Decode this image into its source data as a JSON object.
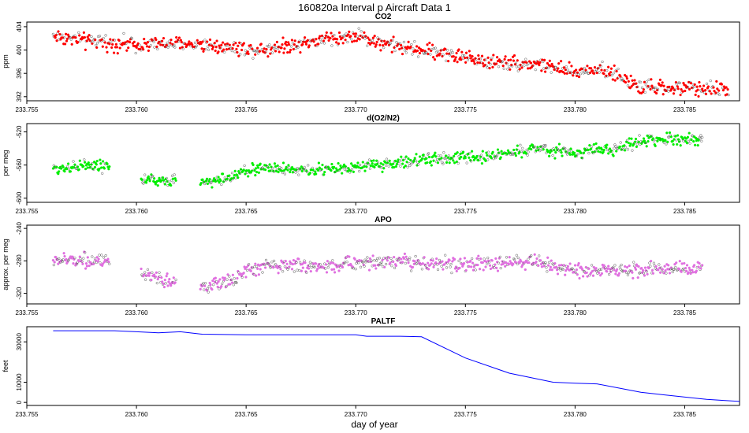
{
  "figure": {
    "title": "160820a   Interval p Aircraft Data 1",
    "xlabel": "day of year"
  },
  "chart_data": [
    {
      "type": "scatter",
      "title": "CO2",
      "ylabel": "ppm",
      "color": "#ff0000",
      "xlim": [
        233.755,
        233.7875
      ],
      "ylim": [
        391.3,
        404.8
      ],
      "yticks": [
        404,
        400,
        396,
        392
      ],
      "xticks": [
        "233.755",
        "233.760",
        "233.765",
        "233.770",
        "233.775",
        "233.780",
        "233.785"
      ],
      "trend": [
        [
          233.7562,
          402.5
        ],
        [
          233.7578,
          401.5
        ],
        [
          233.76,
          401.0
        ],
        [
          233.763,
          401.0
        ],
        [
          233.7655,
          400.0
        ],
        [
          233.768,
          401.5
        ],
        [
          233.77,
          402.5
        ],
        [
          233.772,
          400.5
        ],
        [
          233.774,
          399.5
        ],
        [
          233.776,
          398.0
        ],
        [
          233.7785,
          397.5
        ],
        [
          233.78,
          396.0
        ],
        [
          233.781,
          397.0
        ],
        [
          233.782,
          395.5
        ],
        [
          233.783,
          393.5
        ],
        [
          233.785,
          393.5
        ],
        [
          233.787,
          393.2
        ]
      ],
      "noise": 0.9
    },
    {
      "type": "scatter",
      "title": "d(O2/N2)",
      "ylabel": "per meg",
      "color": "#00ee00",
      "xlim": [
        233.755,
        233.7875
      ],
      "ylim": [
        -605,
        -510
      ],
      "yticks": [
        -520,
        -560,
        -600
      ],
      "xticks": [
        "233.755",
        "233.760",
        "233.765",
        "233.770",
        "233.775",
        "233.780",
        "233.785"
      ],
      "trend": [
        [
          233.7562,
          -565
        ],
        [
          233.7575,
          -560
        ],
        [
          233.7587,
          -562
        ],
        [
          233.7603,
          -577
        ],
        [
          233.7617,
          -580
        ],
        [
          233.763,
          -581
        ],
        [
          233.764,
          -577
        ],
        [
          233.765,
          -567
        ],
        [
          233.766,
          -563
        ],
        [
          233.768,
          -567
        ],
        [
          233.77,
          -563
        ],
        [
          233.772,
          -557
        ],
        [
          233.774,
          -552
        ],
        [
          233.776,
          -550
        ],
        [
          233.778,
          -540
        ],
        [
          233.78,
          -545
        ],
        [
          233.782,
          -540
        ],
        [
          233.783,
          -530
        ],
        [
          233.7858,
          -528
        ]
      ],
      "gaps": [
        [
          233.7588,
          233.7602
        ],
        [
          233.7618,
          233.7629
        ]
      ],
      "noise": 5
    },
    {
      "type": "scatter",
      "title": "APO",
      "ylabel": "approx. per meg",
      "color": "#e070e0",
      "xlim": [
        233.755,
        233.7875
      ],
      "ylim": [
        -333,
        -236
      ],
      "yticks": [
        -240,
        -280,
        -320
      ],
      "xticks": [
        "233.755",
        "233.760",
        "233.765",
        "233.770",
        "233.775",
        "233.780",
        "233.785"
      ],
      "trend": [
        [
          233.7562,
          -280
        ],
        [
          233.7575,
          -278
        ],
        [
          233.7587,
          -282
        ],
        [
          233.7603,
          -300
        ],
        [
          233.7617,
          -305
        ],
        [
          233.763,
          -312
        ],
        [
          233.764,
          -308
        ],
        [
          233.765,
          -293
        ],
        [
          233.766,
          -285
        ],
        [
          233.768,
          -287
        ],
        [
          233.77,
          -283
        ],
        [
          233.772,
          -280
        ],
        [
          233.774,
          -284
        ],
        [
          233.776,
          -284
        ],
        [
          233.778,
          -280
        ],
        [
          233.78,
          -292
        ],
        [
          233.782,
          -291
        ],
        [
          233.784,
          -290
        ],
        [
          233.7858,
          -290
        ]
      ],
      "gaps": [
        [
          233.7588,
          233.7602
        ],
        [
          233.7618,
          233.7629
        ]
      ],
      "noise": 6
    },
    {
      "type": "line",
      "title": "PALTF",
      "ylabel": "feet",
      "color": "#0000ff",
      "xlim": [
        233.755,
        233.7875
      ],
      "ylim": [
        -1500,
        37500
      ],
      "yticks": [
        30000,
        10000,
        0
      ],
      "xticks": [
        "233.755",
        "233.760",
        "233.765",
        "233.770",
        "233.775",
        "233.780",
        "233.785"
      ],
      "x": [
        233.7562,
        233.759,
        233.76,
        233.761,
        233.762,
        233.763,
        233.765,
        233.77,
        233.7705,
        233.772,
        233.773,
        233.775,
        233.777,
        233.779,
        233.78,
        233.781,
        233.783,
        233.784,
        233.786,
        233.7875
      ],
      "y": [
        35500,
        35500,
        35000,
        34500,
        35000,
        33800,
        33500,
        33500,
        32800,
        32800,
        32500,
        22000,
        14500,
        10000,
        9500,
        9200,
        5000,
        3800,
        1500,
        500
      ]
    }
  ]
}
